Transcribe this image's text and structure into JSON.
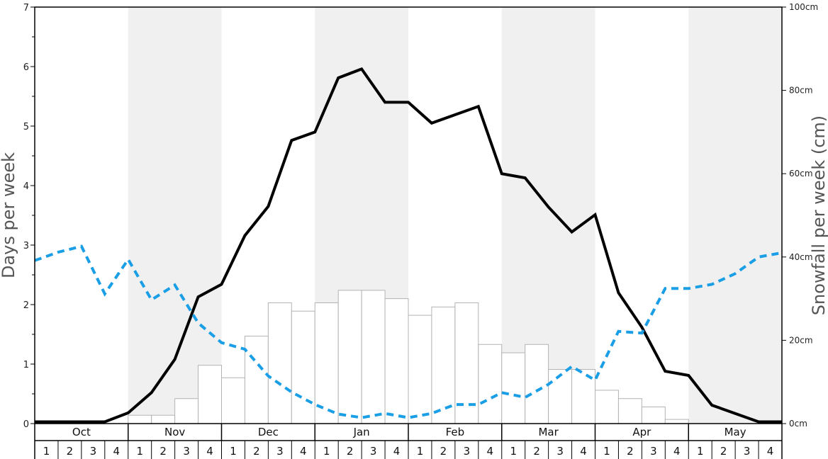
{
  "chart_data": {
    "type": "bar",
    "title": "",
    "ylabel_left": "Days per week",
    "ylabel_right": "Snowfall per week (cm)",
    "ylim_left": [
      0,
      7
    ],
    "ylim_right": [
      0,
      100
    ],
    "left_ticks": [
      "0",
      "1",
      "2",
      "3",
      "4",
      "5",
      "6",
      "7"
    ],
    "right_ticks": [
      "0cm",
      "20cm",
      "40cm",
      "60cm",
      "80cm",
      "100cm"
    ],
    "months": [
      "Oct",
      "Nov",
      "Dec",
      "Jan",
      "Feb",
      "Mar",
      "Apr",
      "May"
    ],
    "weeks_per_month": [
      "1",
      "2",
      "3",
      "4"
    ],
    "band_colors": [
      "#ffffff",
      "#f0f0f0"
    ],
    "series": [
      {
        "kind": "bar",
        "axis": "right",
        "fill": "#ffffff",
        "stroke": "#b3b3b3",
        "values": [
          0,
          0,
          0,
          0,
          2,
          2,
          6,
          14,
          11,
          21,
          29,
          27,
          29,
          32,
          32,
          30,
          26,
          28,
          29,
          19,
          17,
          19,
          13,
          13,
          8,
          6,
          4,
          1,
          0,
          0,
          0,
          0
        ]
      },
      {
        "kind": "line",
        "axis": "left",
        "color": "#000000",
        "dashed": false,
        "values": [
          0.03,
          0.03,
          0.03,
          0.03,
          0.18,
          0.52,
          1.08,
          2.13,
          2.34,
          3.16,
          3.65,
          4.76,
          4.9,
          5.81,
          5.96,
          5.4,
          5.4,
          5.05,
          5.19,
          5.33,
          4.2,
          4.13,
          3.64,
          3.22,
          3.51,
          2.2,
          1.62,
          0.88,
          0.81,
          0.31,
          0.17,
          0.03,
          0.03
        ]
      },
      {
        "kind": "line",
        "axis": "left",
        "color": "#1a9ee6",
        "dashed": true,
        "values": [
          2.74,
          2.88,
          2.98,
          2.18,
          2.76,
          2.08,
          2.33,
          1.69,
          1.36,
          1.25,
          0.8,
          0.53,
          0.32,
          0.16,
          0.1,
          0.17,
          0.1,
          0.17,
          0.32,
          0.32,
          0.52,
          0.44,
          0.66,
          0.96,
          0.73,
          1.55,
          1.52,
          2.27,
          2.27,
          2.34,
          2.52,
          2.8,
          2.87
        ]
      }
    ]
  }
}
